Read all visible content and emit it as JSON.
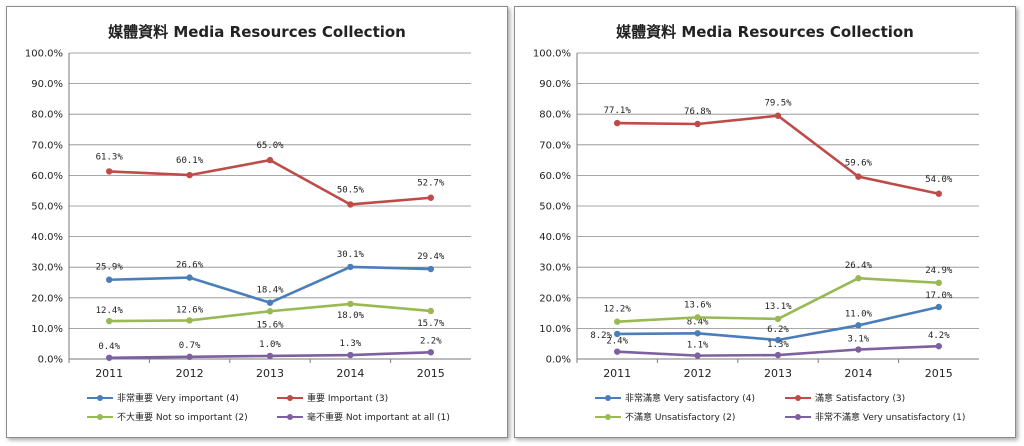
{
  "chart_data": [
    {
      "type": "line",
      "title": "媒體資料  Media Resources Collection",
      "categories": [
        "2011",
        "2012",
        "2013",
        "2014",
        "2015"
      ],
      "ylim": [
        0,
        100
      ],
      "yticks": [
        "0.0%",
        "10.0%",
        "20.0%",
        "30.0%",
        "40.0%",
        "50.0%",
        "60.0%",
        "70.0%",
        "80.0%",
        "90.0%",
        "100.0%"
      ],
      "grid": true,
      "legend_position": "bottom",
      "series": [
        {
          "name": "非常重要 Very important (4)",
          "color": "#4a7ebb",
          "values": [
            25.9,
            26.6,
            18.4,
            30.1,
            29.4
          ],
          "labels": [
            "25.9%",
            "26.6%",
            "18.4%",
            "30.1%",
            "29.4%"
          ]
        },
        {
          "name": "重要 Important (3)",
          "color": "#be4b48",
          "values": [
            61.3,
            60.1,
            65.0,
            50.5,
            52.7
          ],
          "labels": [
            "61.3%",
            "60.1%",
            "65.0%",
            "50.5%",
            "52.7%"
          ]
        },
        {
          "name": "不大重要 Not so important (2)",
          "color": "#98b954",
          "values": [
            12.4,
            12.6,
            15.6,
            18.0,
            15.7
          ],
          "labels": [
            "12.4%",
            "12.6%",
            "15.6%",
            "18.0%",
            "15.7%"
          ]
        },
        {
          "name": "毫不重要 Not important at all (1)",
          "color": "#7d60a0",
          "values": [
            0.4,
            0.7,
            1.0,
            1.3,
            2.2
          ],
          "labels": [
            "0.4%",
            "0.7%",
            "1.0%",
            "1.3%",
            "2.2%"
          ]
        }
      ]
    },
    {
      "type": "line",
      "title": "媒體資料  Media Resources Collection",
      "categories": [
        "2011",
        "2012",
        "2013",
        "2014",
        "2015"
      ],
      "ylim": [
        0,
        100
      ],
      "yticks": [
        "0.0%",
        "10.0%",
        "20.0%",
        "30.0%",
        "40.0%",
        "50.0%",
        "60.0%",
        "70.0%",
        "80.0%",
        "90.0%",
        "100.0%"
      ],
      "grid": true,
      "legend_position": "bottom",
      "series": [
        {
          "name": "非常滿意 Very satisfactory (4)",
          "color": "#4a7ebb",
          "values": [
            8.2,
            8.4,
            6.2,
            11.0,
            17.0
          ],
          "labels": [
            "8.2%",
            "8.4%",
            "6.2%",
            "11.0%",
            "17.0%"
          ]
        },
        {
          "name": "滿意 Satisfactory (3)",
          "color": "#be4b48",
          "values": [
            77.1,
            76.8,
            79.5,
            59.6,
            54.0
          ],
          "labels": [
            "77.1%",
            "76.8%",
            "79.5%",
            "59.6%",
            "54.0%"
          ]
        },
        {
          "name": "不滿意 Unsatisfactory (2)",
          "color": "#98b954",
          "values": [
            12.2,
            13.6,
            13.1,
            26.4,
            24.9
          ],
          "labels": [
            "12.2%",
            "13.6%",
            "13.1%",
            "26.4%",
            "24.9%"
          ]
        },
        {
          "name": "非常不滿意 Very unsatisfactory (1)",
          "color": "#7d60a0",
          "values": [
            2.4,
            1.1,
            1.3,
            3.1,
            4.2
          ],
          "labels": [
            "2.4%",
            "1.1%",
            "1.3%",
            "3.1%",
            "4.2%"
          ]
        }
      ]
    }
  ]
}
